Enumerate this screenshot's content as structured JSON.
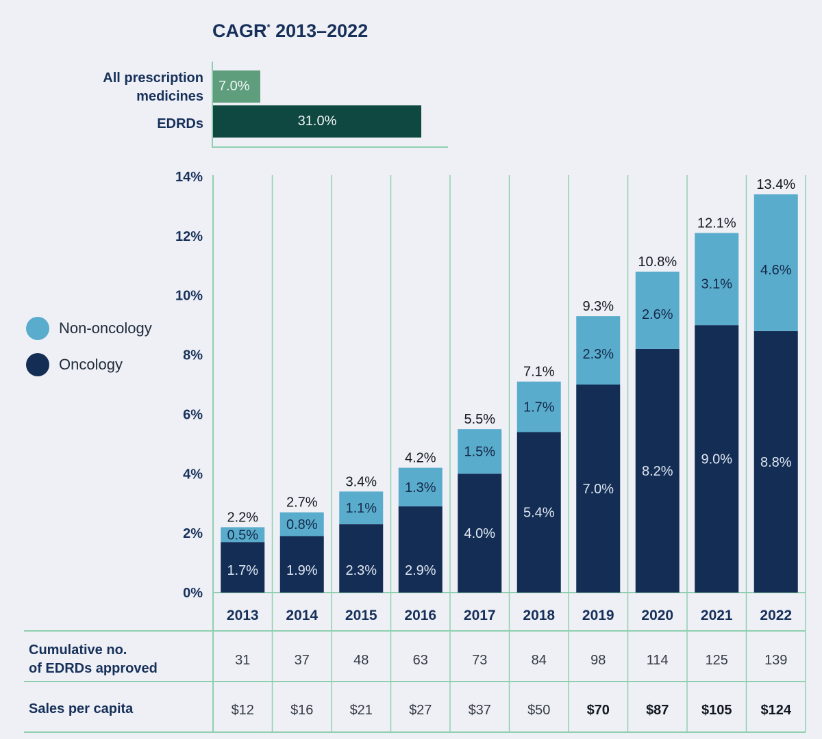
{
  "cagr": {
    "title": "CAGR",
    "title_mark": "*",
    "title_range": " 2013–2022",
    "rows": [
      {
        "label_line1": "All prescription",
        "label_line2": "medicines",
        "value": 7.0,
        "value_label": "7.0%",
        "color": "#5e9e7c"
      },
      {
        "label_line1": "EDRDs",
        "label_line2": "",
        "value": 31.0,
        "value_label": "31.0%",
        "color": "#0e4841"
      }
    ]
  },
  "legend": [
    {
      "label": "Non-oncology",
      "color": "#5aaccc"
    },
    {
      "label": "Oncology",
      "color": "#142d55"
    }
  ],
  "table": {
    "cumulative_label_line1": "Cumulative no.",
    "cumulative_label_line2": "of EDRDs approved",
    "sales_label": "Sales per capita"
  },
  "chart_data": {
    "type": "bar",
    "stacked": true,
    "categories": [
      "2013",
      "2014",
      "2015",
      "2016",
      "2017",
      "2018",
      "2019",
      "2020",
      "2021",
      "2022"
    ],
    "series": [
      {
        "name": "Oncology",
        "color": "#142d55",
        "values": [
          1.7,
          1.9,
          2.3,
          2.9,
          4.0,
          5.4,
          7.0,
          8.2,
          9.0,
          8.8
        ],
        "labels": [
          "1.7%",
          "1.9%",
          "2.3%",
          "2.9%",
          "4.0%",
          "5.4%",
          "7.0%",
          "8.2%",
          "9.0%",
          "8.8%"
        ]
      },
      {
        "name": "Non-oncology",
        "color": "#5aaccc",
        "values": [
          0.5,
          0.8,
          1.1,
          1.3,
          1.5,
          1.7,
          2.3,
          2.6,
          3.1,
          4.6
        ],
        "labels": [
          "0.5%",
          "0.8%",
          "1.1%",
          "1.3%",
          "1.5%",
          "1.7%",
          "2.3%",
          "2.6%",
          "3.1%",
          "4.6%"
        ]
      }
    ],
    "totals": [
      2.2,
      2.7,
      3.4,
      4.2,
      5.5,
      7.1,
      9.3,
      10.8,
      12.1,
      13.4
    ],
    "total_labels": [
      "2.2%",
      "2.7%",
      "3.4%",
      "4.2%",
      "5.5%",
      "7.1%",
      "9.3%",
      "10.8%",
      "12.1%",
      "13.4%"
    ],
    "ylim": [
      0,
      14
    ],
    "yticks": [
      0,
      2,
      4,
      6,
      8,
      10,
      12,
      14
    ],
    "ytick_labels": [
      "0%",
      "2%",
      "4%",
      "6%",
      "8%",
      "10%",
      "12%",
      "14%"
    ],
    "cumulative_edrds": [
      "31",
      "37",
      "48",
      "63",
      "73",
      "84",
      "98",
      "114",
      "125",
      "139"
    ],
    "sales_per_capita": [
      "$12",
      "$16",
      "$21",
      "$27",
      "$37",
      "$50",
      "$70",
      "$87",
      "$105",
      "$124"
    ],
    "sales_bold_from_index": 6
  }
}
